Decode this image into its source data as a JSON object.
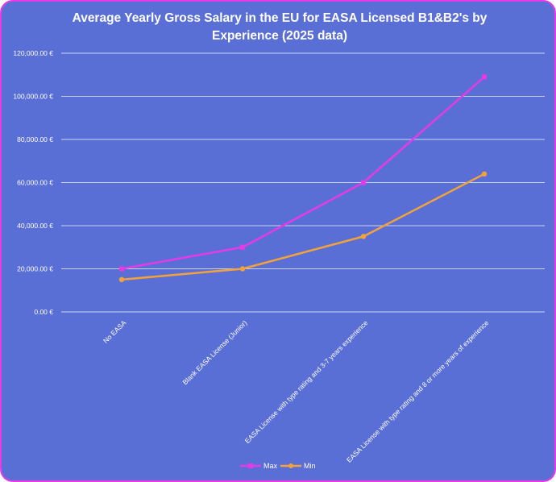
{
  "chart_data": {
    "type": "line",
    "title_line1": "Average Yearly Gross Salary in the EU for EASA Licensed B1&B2's by",
    "title_line2": "Experience (2025 data)",
    "categories": [
      "No EASA",
      "Blank EASA License (Junior)",
      "EASA License with type rating and  3-7 years experience",
      "EASA License with type rating and 8 or more years of experience"
    ],
    "series": [
      {
        "name": "Max",
        "color": "#e53be6",
        "values": [
          20000,
          30000,
          60000,
          109000
        ]
      },
      {
        "name": "Min",
        "color": "#f2a23b",
        "values": [
          15000,
          20000,
          35000,
          64000
        ]
      }
    ],
    "ylim": [
      0,
      120000
    ],
    "yticks": [
      {
        "value": 0,
        "label": "0.00 €"
      },
      {
        "value": 20000,
        "label": "20,000.00 €"
      },
      {
        "value": 40000,
        "label": "40,000.00 €"
      },
      {
        "value": 60000,
        "label": "60,000.00 €"
      },
      {
        "value": 80000,
        "label": "80,000.00 €"
      },
      {
        "value": 100000,
        "label": "100,000.00 €"
      },
      {
        "value": 120000,
        "label": "120,000.00 €"
      }
    ],
    "grid": true,
    "legend_position": "bottom-center"
  }
}
